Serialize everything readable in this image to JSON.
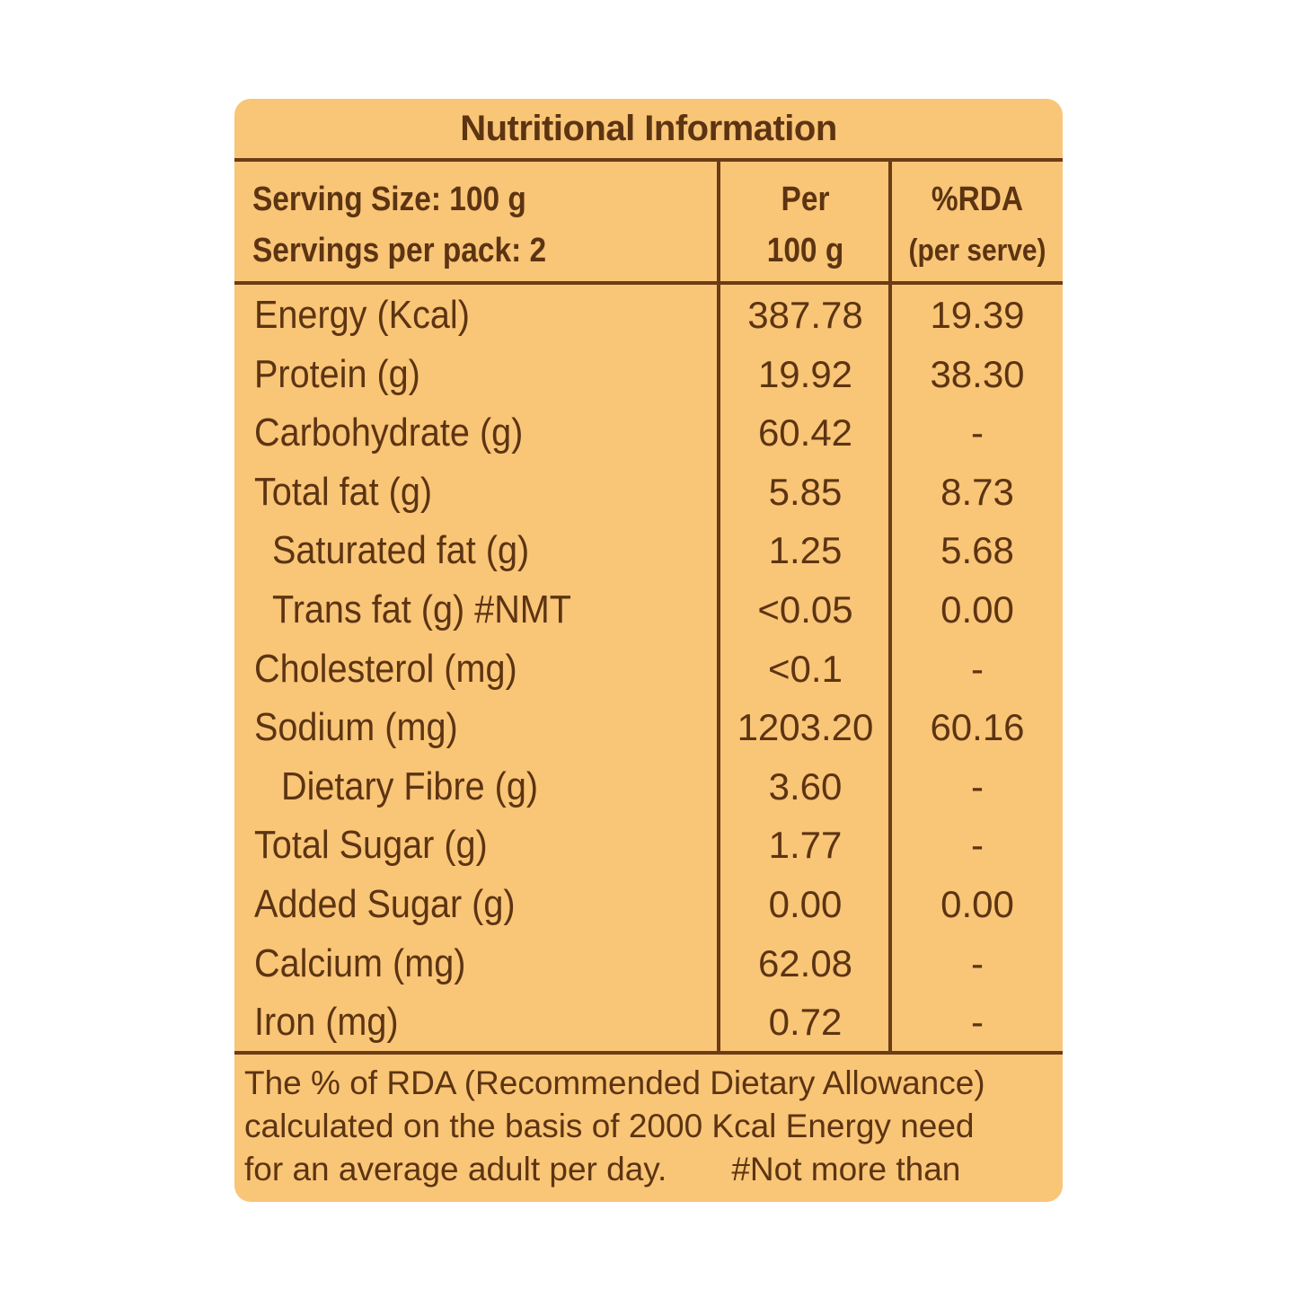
{
  "panel": {
    "title": "Nutritional Information",
    "header": {
      "serving_size": "Serving Size: 100 g",
      "servings_per_pack": "Servings per pack: 2",
      "per_line1": "Per",
      "per_line2": "100 g",
      "rda_line1": "%RDA",
      "rda_line2": "(per serve)"
    },
    "rows": [
      {
        "name": "Energy (Kcal)",
        "per_100g": "387.78",
        "rda": "19.39"
      },
      {
        "name": "Protein (g)",
        "per_100g": "19.92",
        "rda": "38.30"
      },
      {
        "name": "Carbohydrate (g)",
        "per_100g": "60.42",
        "rda": "-"
      },
      {
        "name": "Total fat (g)",
        "per_100g": "5.85",
        "rda": "8.73"
      },
      {
        "name": "Saturated fat (g)",
        "per_100g": "1.25",
        "rda": "5.68"
      },
      {
        "name": "Trans fat (g) #NMT",
        "per_100g": "<0.05",
        "rda": "0.00"
      },
      {
        "name": "Cholesterol (mg)",
        "per_100g": "<0.1",
        "rda": "-"
      },
      {
        "name": "Sodium (mg)",
        "per_100g": "1203.20",
        "rda": "60.16"
      },
      {
        "name": "Dietary Fibre (g)",
        "per_100g": "3.60",
        "rda": "-"
      },
      {
        "name": "Total Sugar (g)",
        "per_100g": "1.77",
        "rda": "-"
      },
      {
        "name": "Added Sugar (g)",
        "per_100g": "0.00",
        "rda": "0.00"
      },
      {
        "name": "Calcium (mg)",
        "per_100g": "62.08",
        "rda": "-"
      },
      {
        "name": "Iron (mg)",
        "per_100g": "0.72",
        "rda": "-"
      }
    ],
    "footnote": {
      "line1": "The % of RDA (Recommended Dietary Allowance)",
      "line2": "calculated on the basis of 2000 Kcal Energy need",
      "line3": "for an average adult per day.",
      "nmt_note": "#Not more than"
    },
    "colors": {
      "background": "#f9c577",
      "text": "#5c3412",
      "rule": "#6b3c16"
    }
  }
}
